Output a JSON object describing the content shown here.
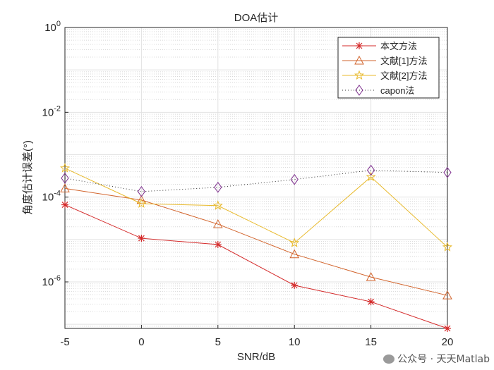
{
  "chart_data": {
    "type": "line",
    "title": "DOA估计",
    "xlabel": "SNR/dB",
    "ylabel": "角度估计误差(°)",
    "yscale": "log",
    "xlim": [
      -5,
      20
    ],
    "ylim": [
      8e-08,
      1
    ],
    "grid": true,
    "legend_position": "top-right",
    "x": [
      -5,
      0,
      5,
      10,
      15,
      20
    ],
    "xticks": [
      "-5",
      "0",
      "5",
      "10",
      "15",
      "20"
    ],
    "yticks": [
      {
        "base": "10",
        "exp": "0",
        "value": 1
      },
      {
        "base": "10",
        "exp": "-2",
        "value": 0.01
      },
      {
        "base": "10",
        "exp": "-4",
        "value": 0.0001
      },
      {
        "base": "10",
        "exp": "-6",
        "value": 1e-06
      }
    ],
    "series": [
      {
        "name": "本文方法",
        "color": "#d42a2a",
        "marker": "asterisk",
        "line": "solid",
        "values": [
          6.6e-05,
          1.07e-05,
          7.6e-06,
          8.3e-07,
          3.4e-07,
          8e-08
        ]
      },
      {
        "name": "文献[1]方法",
        "color": "#d2642c",
        "marker": "triangle",
        "line": "solid",
        "values": [
          0.00016,
          8.5e-05,
          2.3e-05,
          4.5e-06,
          1.3e-06,
          4.8e-07
        ]
      },
      {
        "name": "文献[2]方法",
        "color": "#e8b92a",
        "marker": "star",
        "line": "solid",
        "values": [
          0.00048,
          7e-05,
          6.3e-05,
          8.3e-06,
          0.0003,
          6.6e-06
        ]
      },
      {
        "name": "capon法",
        "color": "#7e2f8e",
        "marker": "diamond",
        "line": "dotted",
        "values": [
          0.00028,
          0.000135,
          0.00017,
          0.00026,
          0.00043,
          0.00038
        ]
      }
    ]
  },
  "watermark": "公众号 · 天天Matlab"
}
